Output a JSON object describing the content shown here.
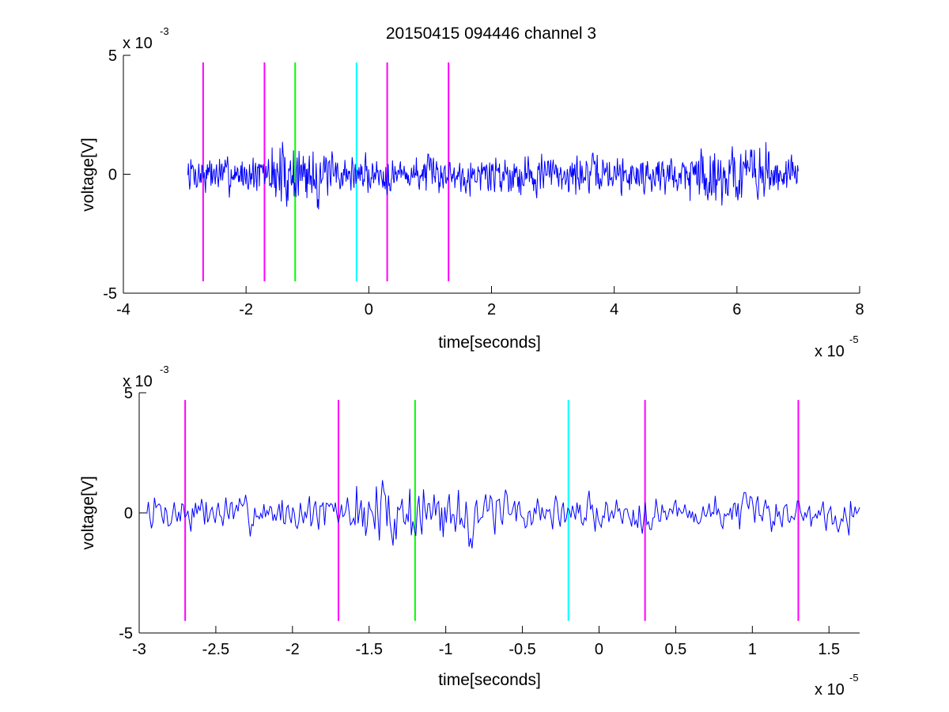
{
  "chart_data": [
    {
      "type": "line",
      "title": "20150415 094446 channel 3",
      "xlabel": "time[seconds]",
      "ylabel": "voltage[V]",
      "x_multiplier": "x 10",
      "x_exponent": "-5",
      "y_multiplier": "x 10",
      "y_exponent": "-3",
      "xlim": [
        -4e-05,
        8e-05
      ],
      "ylim": [
        -0.005,
        0.005
      ],
      "xtick_values": [
        -4e-05,
        -2e-05,
        0,
        2e-05,
        4e-05,
        6e-05,
        8e-05
      ],
      "xtick_labels": [
        "-4",
        "-2",
        "0",
        "2",
        "4",
        "6",
        "8"
      ],
      "ytick_values": [
        -0.005,
        0,
        0.005
      ],
      "ytick_labels": [
        "-5",
        "0",
        "5"
      ],
      "signal": {
        "color": "#0000ff",
        "x_start": -2.95e-05,
        "x_end": 7e-05,
        "count": 1000,
        "seed": 7
      },
      "markers": [
        {
          "x": -2.7e-05,
          "color": "#ff00ff"
        },
        {
          "x": -1.7e-05,
          "color": "#ff00ff"
        },
        {
          "x": -1.2e-05,
          "color": "#00ff00"
        },
        {
          "x": -2e-06,
          "color": "#00ffff"
        },
        {
          "x": 3e-06,
          "color": "#ff00ff"
        },
        {
          "x": 1.3e-05,
          "color": "#ff00ff"
        }
      ],
      "marker_range": [
        -0.0045,
        0.0047
      ]
    },
    {
      "type": "line",
      "title": "",
      "xlabel": "time[seconds]",
      "ylabel": "voltage[V]",
      "x_multiplier": "x 10",
      "x_exponent": "-5",
      "y_multiplier": "x 10",
      "y_exponent": "-3",
      "xlim": [
        -3e-05,
        1.7e-05
      ],
      "ylim": [
        -0.005,
        0.005
      ],
      "xtick_values": [
        -3e-05,
        -2.5e-05,
        -2e-05,
        -1.5e-05,
        -1e-05,
        -5e-06,
        0,
        5e-06,
        1e-05,
        1.5e-05
      ],
      "xtick_labels": [
        "-3",
        "-2.5",
        "-2",
        "-1.5",
        "-1",
        "-0.5",
        "0",
        "0.5",
        "1",
        "1.5"
      ],
      "ytick_values": [
        -0.005,
        0,
        0.005
      ],
      "ytick_labels": [
        "-5",
        "0",
        "5"
      ],
      "signal": {
        "color": "#0000ff",
        "x_start": -2.95e-05,
        "x_end": 1.7e-05,
        "count": 470,
        "seed": 7
      },
      "markers": [
        {
          "x": -2.7e-05,
          "color": "#ff00ff"
        },
        {
          "x": -1.7e-05,
          "color": "#ff00ff"
        },
        {
          "x": -1.2e-05,
          "color": "#00ff00"
        },
        {
          "x": -2e-06,
          "color": "#00ffff"
        },
        {
          "x": 3e-06,
          "color": "#ff00ff"
        },
        {
          "x": 1.3e-05,
          "color": "#ff00ff"
        }
      ],
      "marker_range": [
        -0.0045,
        0.0047
      ]
    }
  ]
}
